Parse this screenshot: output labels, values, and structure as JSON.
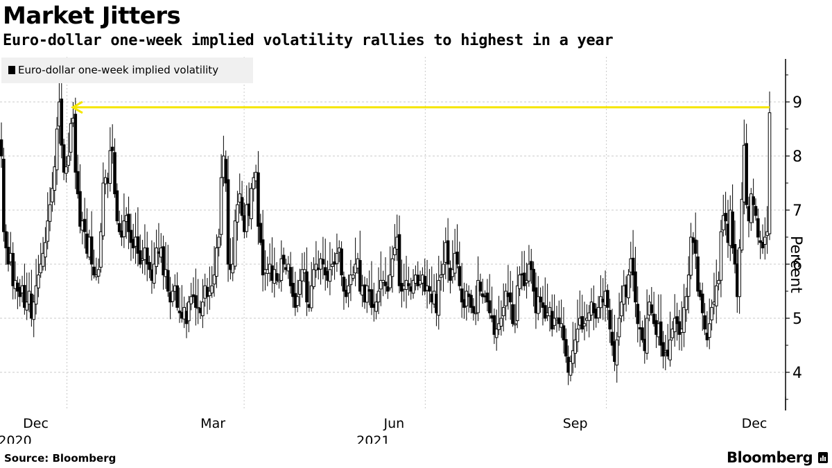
{
  "title": "Market Jitters",
  "subtitle": "Euro-dollar one-week implied volatility rallies to highest in a year",
  "source": "Source: Bloomberg",
  "brand": "Bloomberg",
  "colors": {
    "candle": "#000000",
    "annotation_line": "#f5e600",
    "grid": "#bbbbbb"
  },
  "chart_data": {
    "type": "candlestick",
    "title": "Market Jitters",
    "subtitle": "Euro-dollar one-week implied volatility rallies to highest in a year",
    "ylabel": "Percent",
    "xlabel": "",
    "legend": [
      {
        "label": "Euro-dollar one-week implied volatility",
        "position": "top-left"
      }
    ],
    "y_ticks": [
      4,
      5,
      6,
      7,
      8,
      9
    ],
    "ylim": [
      3.3,
      9.8
    ],
    "x_ticks": [
      {
        "label": "Dec",
        "year": "2020",
        "date": "2020-12-01"
      },
      {
        "label": "Mar",
        "date": "2021-03-01"
      },
      {
        "label": "Jun",
        "year": "2021",
        "date": "2021-06-01"
      },
      {
        "label": "Sep",
        "date": "2021-09-01"
      },
      {
        "label": "Dec",
        "date": "2021-12-01"
      }
    ],
    "x_range": [
      "2020-10-28",
      "2021-11-29"
    ],
    "grid": true,
    "annotation": {
      "type": "arrow-line",
      "value": 8.9,
      "from_date": "2021-11-29",
      "to_date": "2020-11-16",
      "direction": "left"
    },
    "closes_approx": [
      8.0,
      6.6,
      6.3,
      6.0,
      6.2,
      5.6,
      5.7,
      5.5,
      5.4,
      5.6,
      5.2,
      5.3,
      5.5,
      5.0,
      5.3,
      5.6,
      5.8,
      6.0,
      6.2,
      6.4,
      6.8,
      7.1,
      7.4,
      7.8,
      8.5,
      9.0,
      8.2,
      7.7,
      7.8,
      8.0,
      8.6,
      8.7,
      7.7,
      7.3,
      6.7,
      6.8,
      6.6,
      6.2,
      6.5,
      6.0,
      5.8,
      5.8,
      5.9,
      6.6,
      7.5,
      7.6,
      7.5,
      8.1,
      8.1,
      7.3,
      6.8,
      6.6,
      6.5,
      6.8,
      6.9,
      6.6,
      6.4,
      6.3,
      6.5,
      6.2,
      6.0,
      6.1,
      6.3,
      6.0,
      5.9,
      5.7,
      6.0,
      6.3,
      6.2,
      6.3,
      5.8,
      5.9,
      5.5,
      5.3,
      5.5,
      5.6,
      5.2,
      5.1,
      5.0,
      5.2,
      4.9,
      5.3,
      5.4,
      5.4,
      5.2,
      5.2,
      5.1,
      5.3,
      5.6,
      5.4,
      5.5,
      5.6,
      5.8,
      6.3,
      6.5,
      7.6,
      8.0,
      7.5,
      6.0,
      5.9,
      6.0,
      6.8,
      7.1,
      7.3,
      6.9,
      6.6,
      7.1,
      6.9,
      7.4,
      7.6,
      7.7,
      6.7,
      6.4,
      5.8,
      5.9,
      5.9,
      6.0,
      5.7,
      5.9,
      5.7,
      5.7,
      6.1,
      6.0,
      5.9,
      6.0,
      5.6,
      5.4,
      5.2,
      5.4,
      5.7,
      5.9,
      5.9,
      5.3,
      5.2,
      5.6,
      5.9,
      6.0,
      5.9,
      6.1,
      6.0,
      5.8,
      5.7,
      5.9,
      6.0,
      6.0,
      6.2,
      6.3,
      5.8,
      5.5,
      5.4,
      5.6,
      5.8,
      5.8,
      6.0,
      6.1,
      5.5,
      5.6,
      5.3,
      5.6,
      5.5,
      5.2,
      5.2,
      5.3,
      5.5,
      5.7,
      5.7,
      5.6,
      5.5,
      5.8,
      6.1,
      6.3,
      6.5,
      5.6,
      5.5,
      5.6,
      5.7,
      5.6,
      5.5,
      5.7,
      5.8,
      5.6,
      5.7,
      5.8,
      5.5,
      5.6,
      5.5,
      5.3,
      5.5,
      5.1,
      5.7,
      5.8,
      6.0,
      6.4,
      6.0,
      5.7,
      5.9,
      6.2,
      6.0,
      5.6,
      5.3,
      5.2,
      5.5,
      5.4,
      5.2,
      5.1,
      5.1,
      5.7,
      5.5,
      5.4,
      5.4,
      5.3,
      5.1,
      5.0,
      4.7,
      4.8,
      4.9,
      5.0,
      5.2,
      5.5,
      5.4,
      5.3,
      4.9,
      4.9,
      5.6,
      5.8,
      5.8,
      5.6,
      5.7,
      6.0,
      5.9,
      5.5,
      5.1,
      5.4,
      5.3,
      5.2,
      5.0,
      5.1,
      5.2,
      4.8,
      5.0,
      5.0,
      4.9,
      4.9,
      4.6,
      4.3,
      4.0,
      4.2,
      4.4,
      4.6,
      4.8,
      5.0,
      4.8,
      4.9,
      5.0,
      5.1,
      5.3,
      5.1,
      5.0,
      5.2,
      5.4,
      5.3,
      5.5,
      5.2,
      4.8,
      4.5,
      4.2,
      4.6,
      5.0,
      5.3,
      5.6,
      5.4,
      5.8,
      6.1,
      5.8,
      5.3,
      4.9,
      4.8,
      4.6,
      4.4,
      5.0,
      5.3,
      5.1,
      4.9,
      4.7,
      4.9,
      4.5,
      4.3,
      4.4,
      4.3,
      4.6,
      4.8,
      5.0,
      4.9,
      4.7,
      4.8,
      5.2,
      5.4,
      5.8,
      6.5,
      6.4,
      6.2,
      5.5,
      5.4,
      5.1,
      4.8,
      4.6,
      4.9,
      5.2,
      5.3,
      5.6,
      5.7,
      6.6,
      6.9,
      6.8,
      6.4,
      7.0,
      6.3,
      6.0,
      5.4,
      6.3,
      7.2,
      8.2,
      7.1,
      6.8,
      7.3,
      7.1,
      6.9,
      6.5,
      6.4,
      6.3,
      6.5,
      6.6,
      8.8
    ]
  }
}
